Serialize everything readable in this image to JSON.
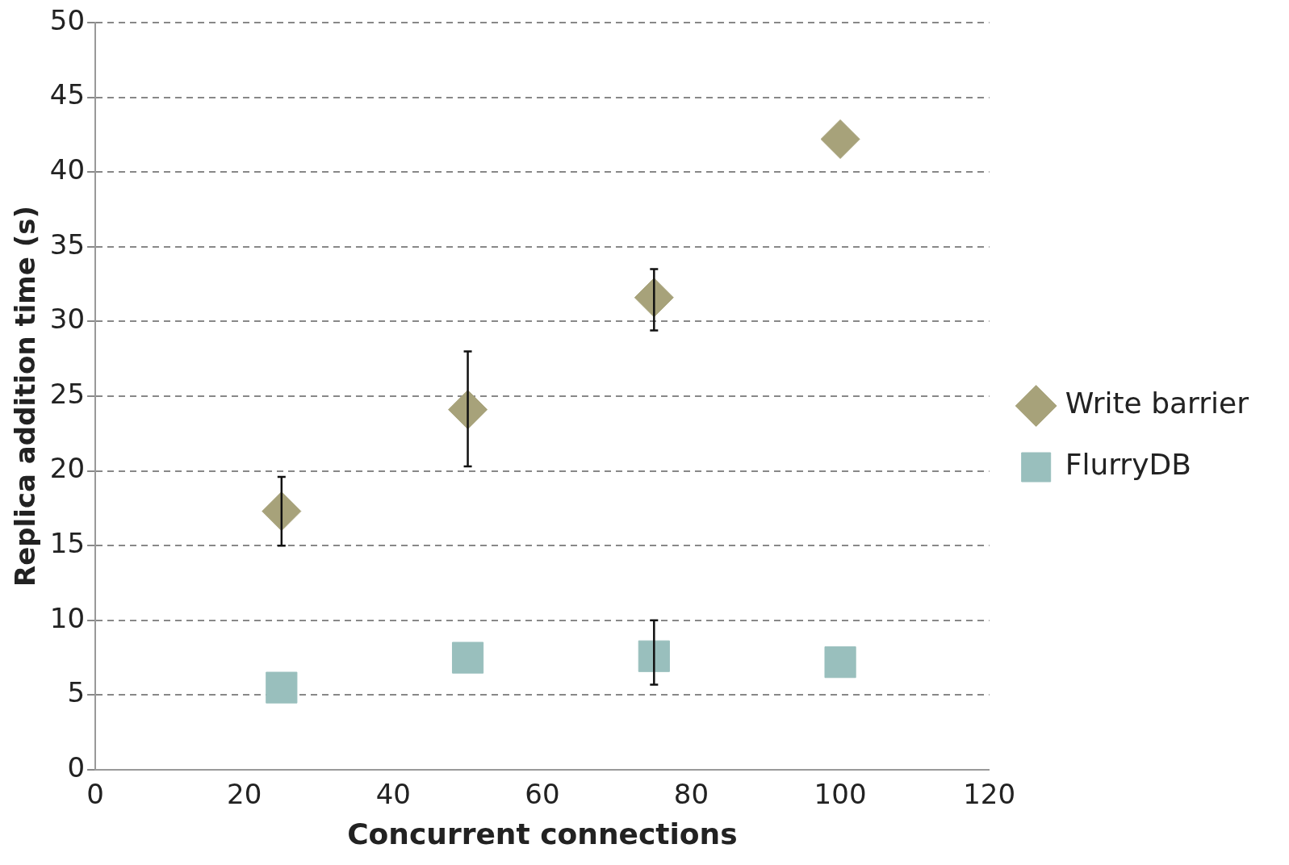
{
  "chart_data": {
    "type": "scatter",
    "xlabel": "Concurrent connections",
    "ylabel": "Replica addition time (s)",
    "xlim": [
      0,
      120
    ],
    "xticks": [
      0,
      20,
      40,
      60,
      80,
      100,
      120
    ],
    "ylim": [
      0,
      50
    ],
    "yticks": [
      0,
      5,
      10,
      15,
      20,
      25,
      30,
      35,
      40,
      45,
      50
    ],
    "grid": "y",
    "legend": "right",
    "series": [
      {
        "name": "Write barrier",
        "color": "#a7a27a",
        "marker": "diamond",
        "x": [
          25,
          50,
          75,
          100
        ],
        "values": [
          17.3,
          24.1,
          31.6,
          42.2
        ],
        "errors": [
          [
            15.0,
            19.6
          ],
          [
            20.3,
            28.0
          ],
          [
            29.4,
            33.5
          ],
          null
        ]
      },
      {
        "name": "FlurryDB",
        "color": "#99bfbd",
        "marker": "square",
        "x": [
          25,
          50,
          75,
          100
        ],
        "values": [
          5.5,
          7.5,
          7.6,
          7.2
        ],
        "errors": [
          null,
          null,
          [
            5.7,
            10.0
          ],
          null
        ]
      }
    ]
  }
}
